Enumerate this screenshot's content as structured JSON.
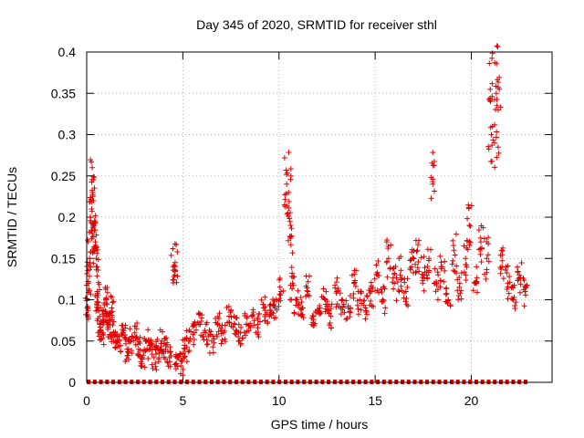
{
  "chart_data": {
    "type": "scatter",
    "title": "Day 345 of 2020, SRMTID for receiver sthl",
    "xlabel": "GPS time / hours",
    "ylabel": "SRMTID / TECUs",
    "xlim": [
      0,
      24.2
    ],
    "ylim": [
      0,
      0.4
    ],
    "xticks": [
      0,
      5,
      10,
      15,
      20
    ],
    "xtick_labels": [
      "0",
      "5",
      "10",
      "15",
      "20"
    ],
    "yticks": [
      0,
      0.05,
      0.1,
      0.15,
      0.2,
      0.25,
      0.3,
      0.35,
      0.4
    ],
    "ytick_labels": [
      "0",
      "0.05",
      "0.1",
      "0.15",
      "0.2",
      "0.25",
      "0.3",
      "0.35",
      "0.4"
    ],
    "grid": true,
    "marker": "+",
    "color": "#e00000",
    "series": [
      {
        "name": "SRMTID",
        "x": [
          0.05,
          0.1,
          0.15,
          0.2,
          0.3,
          0.35,
          0.4,
          0.45,
          0.5,
          0.55,
          0.6,
          0.7,
          0.8,
          0.9,
          1.0,
          1.1,
          1.2,
          1.3,
          1.4,
          1.5,
          1.7,
          1.9,
          2.1,
          2.3,
          2.5,
          2.7,
          2.9,
          3.1,
          3.3,
          3.5,
          3.7,
          3.9,
          4.1,
          4.3,
          4.5,
          4.6,
          4.7,
          4.9,
          5.1,
          5.3,
          5.6,
          5.9,
          6.2,
          6.5,
          6.8,
          7.1,
          7.4,
          7.7,
          8.0,
          8.3,
          8.6,
          8.9,
          9.2,
          9.5,
          9.8,
          10.1,
          10.4,
          10.5,
          10.6,
          10.7,
          10.9,
          11.2,
          11.5,
          11.8,
          12.1,
          12.4,
          12.7,
          13.0,
          13.3,
          13.6,
          13.9,
          14.2,
          14.5,
          14.8,
          15.1,
          15.4,
          15.7,
          16.0,
          16.3,
          16.6,
          16.9,
          17.2,
          17.5,
          17.8,
          18.0,
          18.2,
          18.5,
          18.8,
          19.1,
          19.4,
          19.7,
          19.9,
          20.2,
          20.5,
          20.8,
          21.0,
          21.1,
          21.3,
          21.4,
          21.6,
          21.9,
          22.2,
          22.5,
          22.8
        ],
        "y": [
          0.09,
          0.12,
          0.15,
          0.2,
          0.23,
          0.22,
          0.19,
          0.17,
          0.14,
          0.11,
          0.09,
          0.07,
          0.06,
          0.08,
          0.1,
          0.08,
          0.07,
          0.09,
          0.06,
          0.05,
          0.05,
          0.06,
          0.04,
          0.05,
          0.06,
          0.04,
          0.03,
          0.05,
          0.04,
          0.03,
          0.04,
          0.05,
          0.04,
          0.03,
          0.14,
          0.145,
          0.03,
          0.02,
          0.04,
          0.05,
          0.06,
          0.07,
          0.06,
          0.05,
          0.07,
          0.06,
          0.08,
          0.07,
          0.06,
          0.07,
          0.08,
          0.07,
          0.09,
          0.08,
          0.09,
          0.11,
          0.24,
          0.23,
          0.19,
          0.12,
          0.1,
          0.09,
          0.11,
          0.08,
          0.09,
          0.1,
          0.08,
          0.11,
          0.1,
          0.09,
          0.12,
          0.1,
          0.09,
          0.11,
          0.13,
          0.1,
          0.15,
          0.12,
          0.13,
          0.11,
          0.14,
          0.16,
          0.13,
          0.15,
          0.24,
          0.12,
          0.14,
          0.1,
          0.16,
          0.12,
          0.15,
          0.19,
          0.12,
          0.17,
          0.15,
          0.34,
          0.31,
          0.35,
          0.33,
          0.14,
          0.12,
          0.1,
          0.13,
          0.11
        ]
      }
    ]
  }
}
